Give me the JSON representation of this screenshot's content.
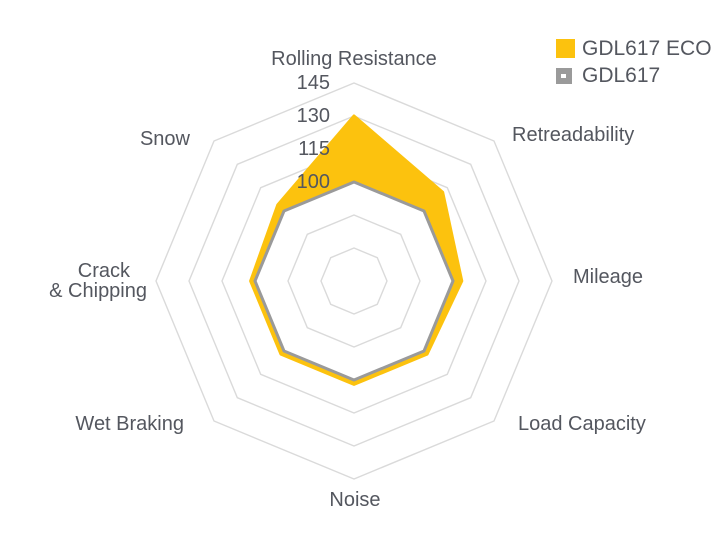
{
  "chart_data": {
    "type": "radar",
    "title": "",
    "categories": [
      "Rolling Resistance",
      "Retreadability",
      "Mileage",
      "Load Capacity",
      "Noise",
      "Wet Braking",
      "Crack & Chipping",
      "Snow"
    ],
    "series": [
      {
        "name": "GDL617 ECO",
        "color": "#FCC20E",
        "values": [
          130,
          112,
          104,
          102,
          102,
          102,
          102,
          104
        ]
      },
      {
        "name": "GDL617",
        "color": "#9A9A9A",
        "values": [
          100,
          100,
          100,
          100,
          100,
          100,
          100,
          100
        ]
      }
    ],
    "scale": {
      "min": 55,
      "max": 145,
      "step": 15,
      "shown_tick_labels": [
        145,
        130,
        115,
        100
      ]
    },
    "grid": {
      "rings": [
        70,
        85,
        100,
        115,
        130,
        145
      ],
      "shape": "octagon",
      "spokes": false,
      "color": "#DADADA"
    },
    "text_color": "#54575F",
    "legend_position": "top-right"
  },
  "legend": {
    "items": [
      {
        "label": "GDL617 ECO",
        "color": "#FCC20E"
      },
      {
        "label": "GDL617",
        "color": "#9A9A9A"
      }
    ]
  }
}
